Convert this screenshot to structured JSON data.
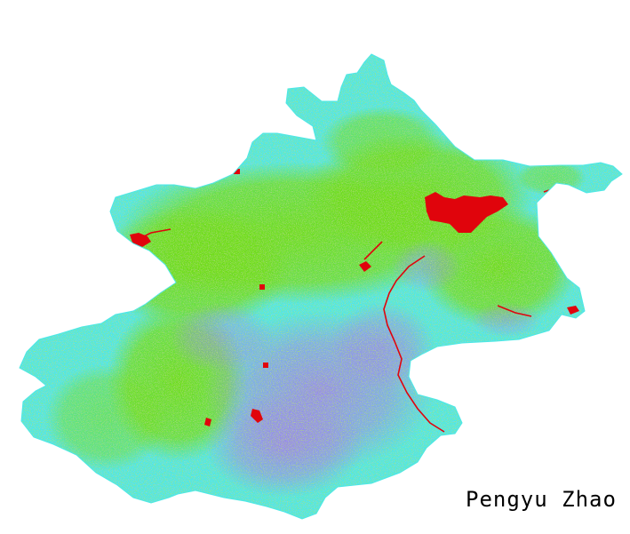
{
  "credit_text": "Pengyu Zhao",
  "colors": {
    "background": "#ffffff",
    "cyan_class": "#4ee8e6",
    "green_class": "#6fdc14",
    "purple_class": "#9a88e8",
    "red_class": "#e0040c",
    "text": "#000000"
  }
}
